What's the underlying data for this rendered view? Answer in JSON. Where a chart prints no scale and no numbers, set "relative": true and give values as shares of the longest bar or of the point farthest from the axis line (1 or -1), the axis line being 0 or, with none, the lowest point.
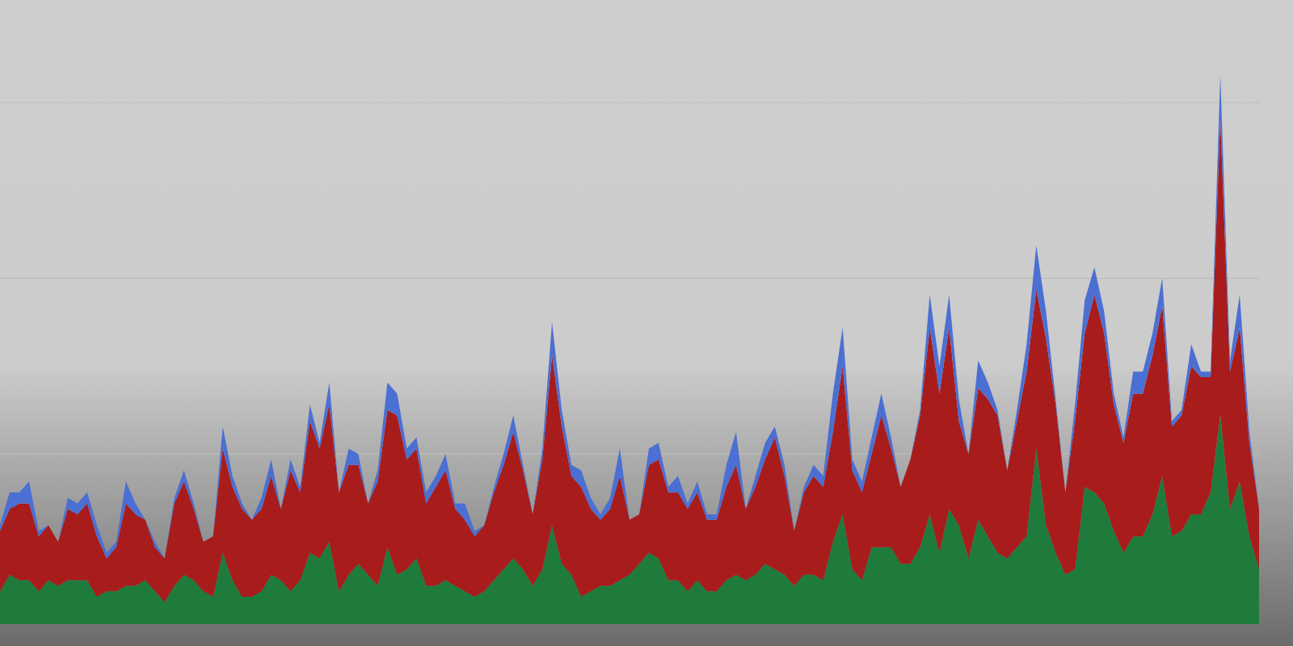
{
  "chart_data": {
    "type": "area",
    "relative": true,
    "stacked": true,
    "ref_lines": [
      {
        "axis": "y",
        "value": 0.31,
        "color": "#bcbcbc"
      },
      {
        "axis": "y",
        "value": 0.63,
        "color": "#bcbcbc"
      },
      {
        "axis": "y",
        "value": 0.95,
        "color": "#bcbcbc"
      }
    ],
    "categories": [
      null,
      null,
      null,
      null,
      null,
      null,
      null,
      null,
      null,
      null,
      null,
      null,
      null,
      null,
      null,
      null,
      null,
      null,
      null,
      null,
      null,
      null,
      null,
      null,
      null,
      null,
      null,
      null,
      null,
      null,
      null,
      null,
      null,
      null,
      null,
      null,
      null,
      null,
      null,
      null,
      null,
      null,
      null,
      null,
      null,
      null,
      null,
      null,
      null,
      null,
      null,
      null,
      null,
      null,
      null,
      null,
      null,
      null,
      null,
      null,
      null,
      null,
      null,
      null,
      null,
      null,
      null,
      null,
      null,
      null,
      null,
      null,
      null,
      null,
      null,
      null,
      null,
      null,
      null,
      null,
      null,
      null,
      null,
      null,
      null,
      null,
      null,
      null,
      null,
      null,
      null,
      null,
      null,
      null,
      null,
      null,
      null,
      null,
      null,
      null,
      null,
      null,
      null,
      null,
      null,
      null,
      null,
      null,
      null,
      null,
      null,
      null,
      null,
      null,
      null,
      null,
      null,
      null,
      null,
      null,
      null,
      null,
      null,
      null,
      null,
      null,
      null,
      null,
      null,
      null,
      null
    ],
    "series": [
      {
        "color": "#1e7b3c",
        "values": [
          0.06,
          0.09,
          0.08,
          0.08,
          0.06,
          0.08,
          0.07,
          0.08,
          0.08,
          0.08,
          0.05,
          0.06,
          0.06,
          0.07,
          0.07,
          0.08,
          0.06,
          0.04,
          0.07,
          0.09,
          0.08,
          0.06,
          0.05,
          0.13,
          0.08,
          0.05,
          0.05,
          0.06,
          0.09,
          0.08,
          0.06,
          0.08,
          0.13,
          0.12,
          0.15,
          0.06,
          0.09,
          0.11,
          0.09,
          0.07,
          0.14,
          0.09,
          0.1,
          0.12,
          0.07,
          0.07,
          0.08,
          0.07,
          0.06,
          0.05,
          0.06,
          0.08,
          0.1,
          0.12,
          0.1,
          0.07,
          0.1,
          0.18,
          0.11,
          0.09,
          0.05,
          0.06,
          0.07,
          0.07,
          0.08,
          0.09,
          0.11,
          0.13,
          0.12,
          0.08,
          0.08,
          0.06,
          0.08,
          0.06,
          0.06,
          0.08,
          0.09,
          0.08,
          0.09,
          0.11,
          0.1,
          0.09,
          0.07,
          0.09,
          0.09,
          0.08,
          0.15,
          0.2,
          0.1,
          0.08,
          0.14,
          0.14,
          0.14,
          0.11,
          0.11,
          0.14,
          0.2,
          0.13,
          0.21,
          0.18,
          0.12,
          0.19,
          0.16,
          0.13,
          0.12,
          0.14,
          0.16,
          0.32,
          0.18,
          0.13,
          0.09,
          0.1,
          0.25,
          0.24,
          0.22,
          0.17,
          0.13,
          0.16,
          0.16,
          0.2,
          0.27,
          0.16,
          0.17,
          0.2,
          0.2,
          0.24,
          0.38,
          0.21,
          0.26,
          0.16,
          0.1
        ]
      },
      {
        "color": "#a81c1c",
        "values": [
          0.11,
          0.12,
          0.14,
          0.14,
          0.1,
          0.1,
          0.08,
          0.13,
          0.12,
          0.14,
          0.11,
          0.06,
          0.08,
          0.15,
          0.13,
          0.11,
          0.08,
          0.08,
          0.15,
          0.17,
          0.13,
          0.09,
          0.11,
          0.19,
          0.17,
          0.16,
          0.14,
          0.15,
          0.18,
          0.13,
          0.22,
          0.16,
          0.24,
          0.2,
          0.25,
          0.18,
          0.2,
          0.18,
          0.13,
          0.19,
          0.25,
          0.29,
          0.2,
          0.2,
          0.15,
          0.18,
          0.2,
          0.14,
          0.13,
          0.11,
          0.12,
          0.16,
          0.19,
          0.23,
          0.18,
          0.13,
          0.2,
          0.31,
          0.25,
          0.18,
          0.2,
          0.15,
          0.12,
          0.14,
          0.19,
          0.1,
          0.09,
          0.16,
          0.18,
          0.16,
          0.16,
          0.15,
          0.16,
          0.13,
          0.13,
          0.17,
          0.2,
          0.13,
          0.16,
          0.19,
          0.24,
          0.18,
          0.1,
          0.15,
          0.18,
          0.17,
          0.2,
          0.27,
          0.18,
          0.16,
          0.17,
          0.24,
          0.18,
          0.14,
          0.19,
          0.24,
          0.34,
          0.29,
          0.33,
          0.19,
          0.19,
          0.24,
          0.25,
          0.25,
          0.16,
          0.23,
          0.3,
          0.29,
          0.34,
          0.27,
          0.15,
          0.27,
          0.28,
          0.36,
          0.31,
          0.23,
          0.2,
          0.26,
          0.26,
          0.29,
          0.31,
          0.2,
          0.21,
          0.27,
          0.25,
          0.21,
          0.54,
          0.25,
          0.28,
          0.17,
          0.11
        ]
      },
      {
        "color": "#4b6fd2",
        "values": [
          0.01,
          0.03,
          0.02,
          0.04,
          0.01,
          0,
          0,
          0.02,
          0.02,
          0.02,
          0.02,
          0.01,
          0.01,
          0.04,
          0.02,
          0,
          0.01,
          0,
          0.01,
          0.02,
          0.01,
          0,
          0,
          0.04,
          0.02,
          0.01,
          0,
          0.02,
          0.03,
          0,
          0.02,
          0.01,
          0.03,
          0.01,
          0.04,
          0,
          0.03,
          0.02,
          0,
          0.02,
          0.05,
          0.04,
          0.02,
          0.02,
          0.02,
          0.02,
          0.03,
          0.01,
          0.03,
          0.01,
          0,
          0.01,
          0.02,
          0.03,
          0.01,
          0,
          0.02,
          0.06,
          0.03,
          0.02,
          0.03,
          0.02,
          0.01,
          0.02,
          0.05,
          0,
          0,
          0.03,
          0.03,
          0.01,
          0.03,
          0.01,
          0.02,
          0.01,
          0.01,
          0.04,
          0.06,
          0,
          0.02,
          0.03,
          0.02,
          0.02,
          0,
          0.01,
          0.02,
          0.02,
          0.07,
          0.07,
          0.02,
          0.02,
          0.03,
          0.04,
          0.02,
          0,
          0,
          0.01,
          0.06,
          0.05,
          0.06,
          0.04,
          0,
          0.05,
          0.03,
          0.01,
          0,
          0.02,
          0.05,
          0.08,
          0.05,
          0.01,
          0,
          0.03,
          0.06,
          0.05,
          0.04,
          0.02,
          0.01,
          0.04,
          0.04,
          0.04,
          0.05,
          0.01,
          0.01,
          0.04,
          0.01,
          0.01,
          0.08,
          0.02,
          0.06,
          0.02,
          0
        ]
      }
    ]
  }
}
